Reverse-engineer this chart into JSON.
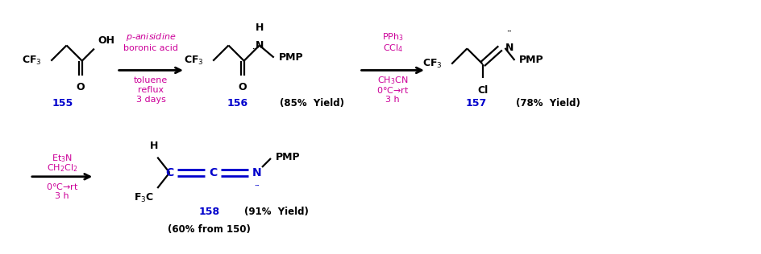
{
  "bg_color": "#ffffff",
  "black": "#000000",
  "blue": "#0000cc",
  "magenta": "#cc0099",
  "yield_156": "(85%  Yield)",
  "yield_157": "(78%  Yield)",
  "yield_158": "(91%  Yield)",
  "yield_158b": "(60% from 150)"
}
